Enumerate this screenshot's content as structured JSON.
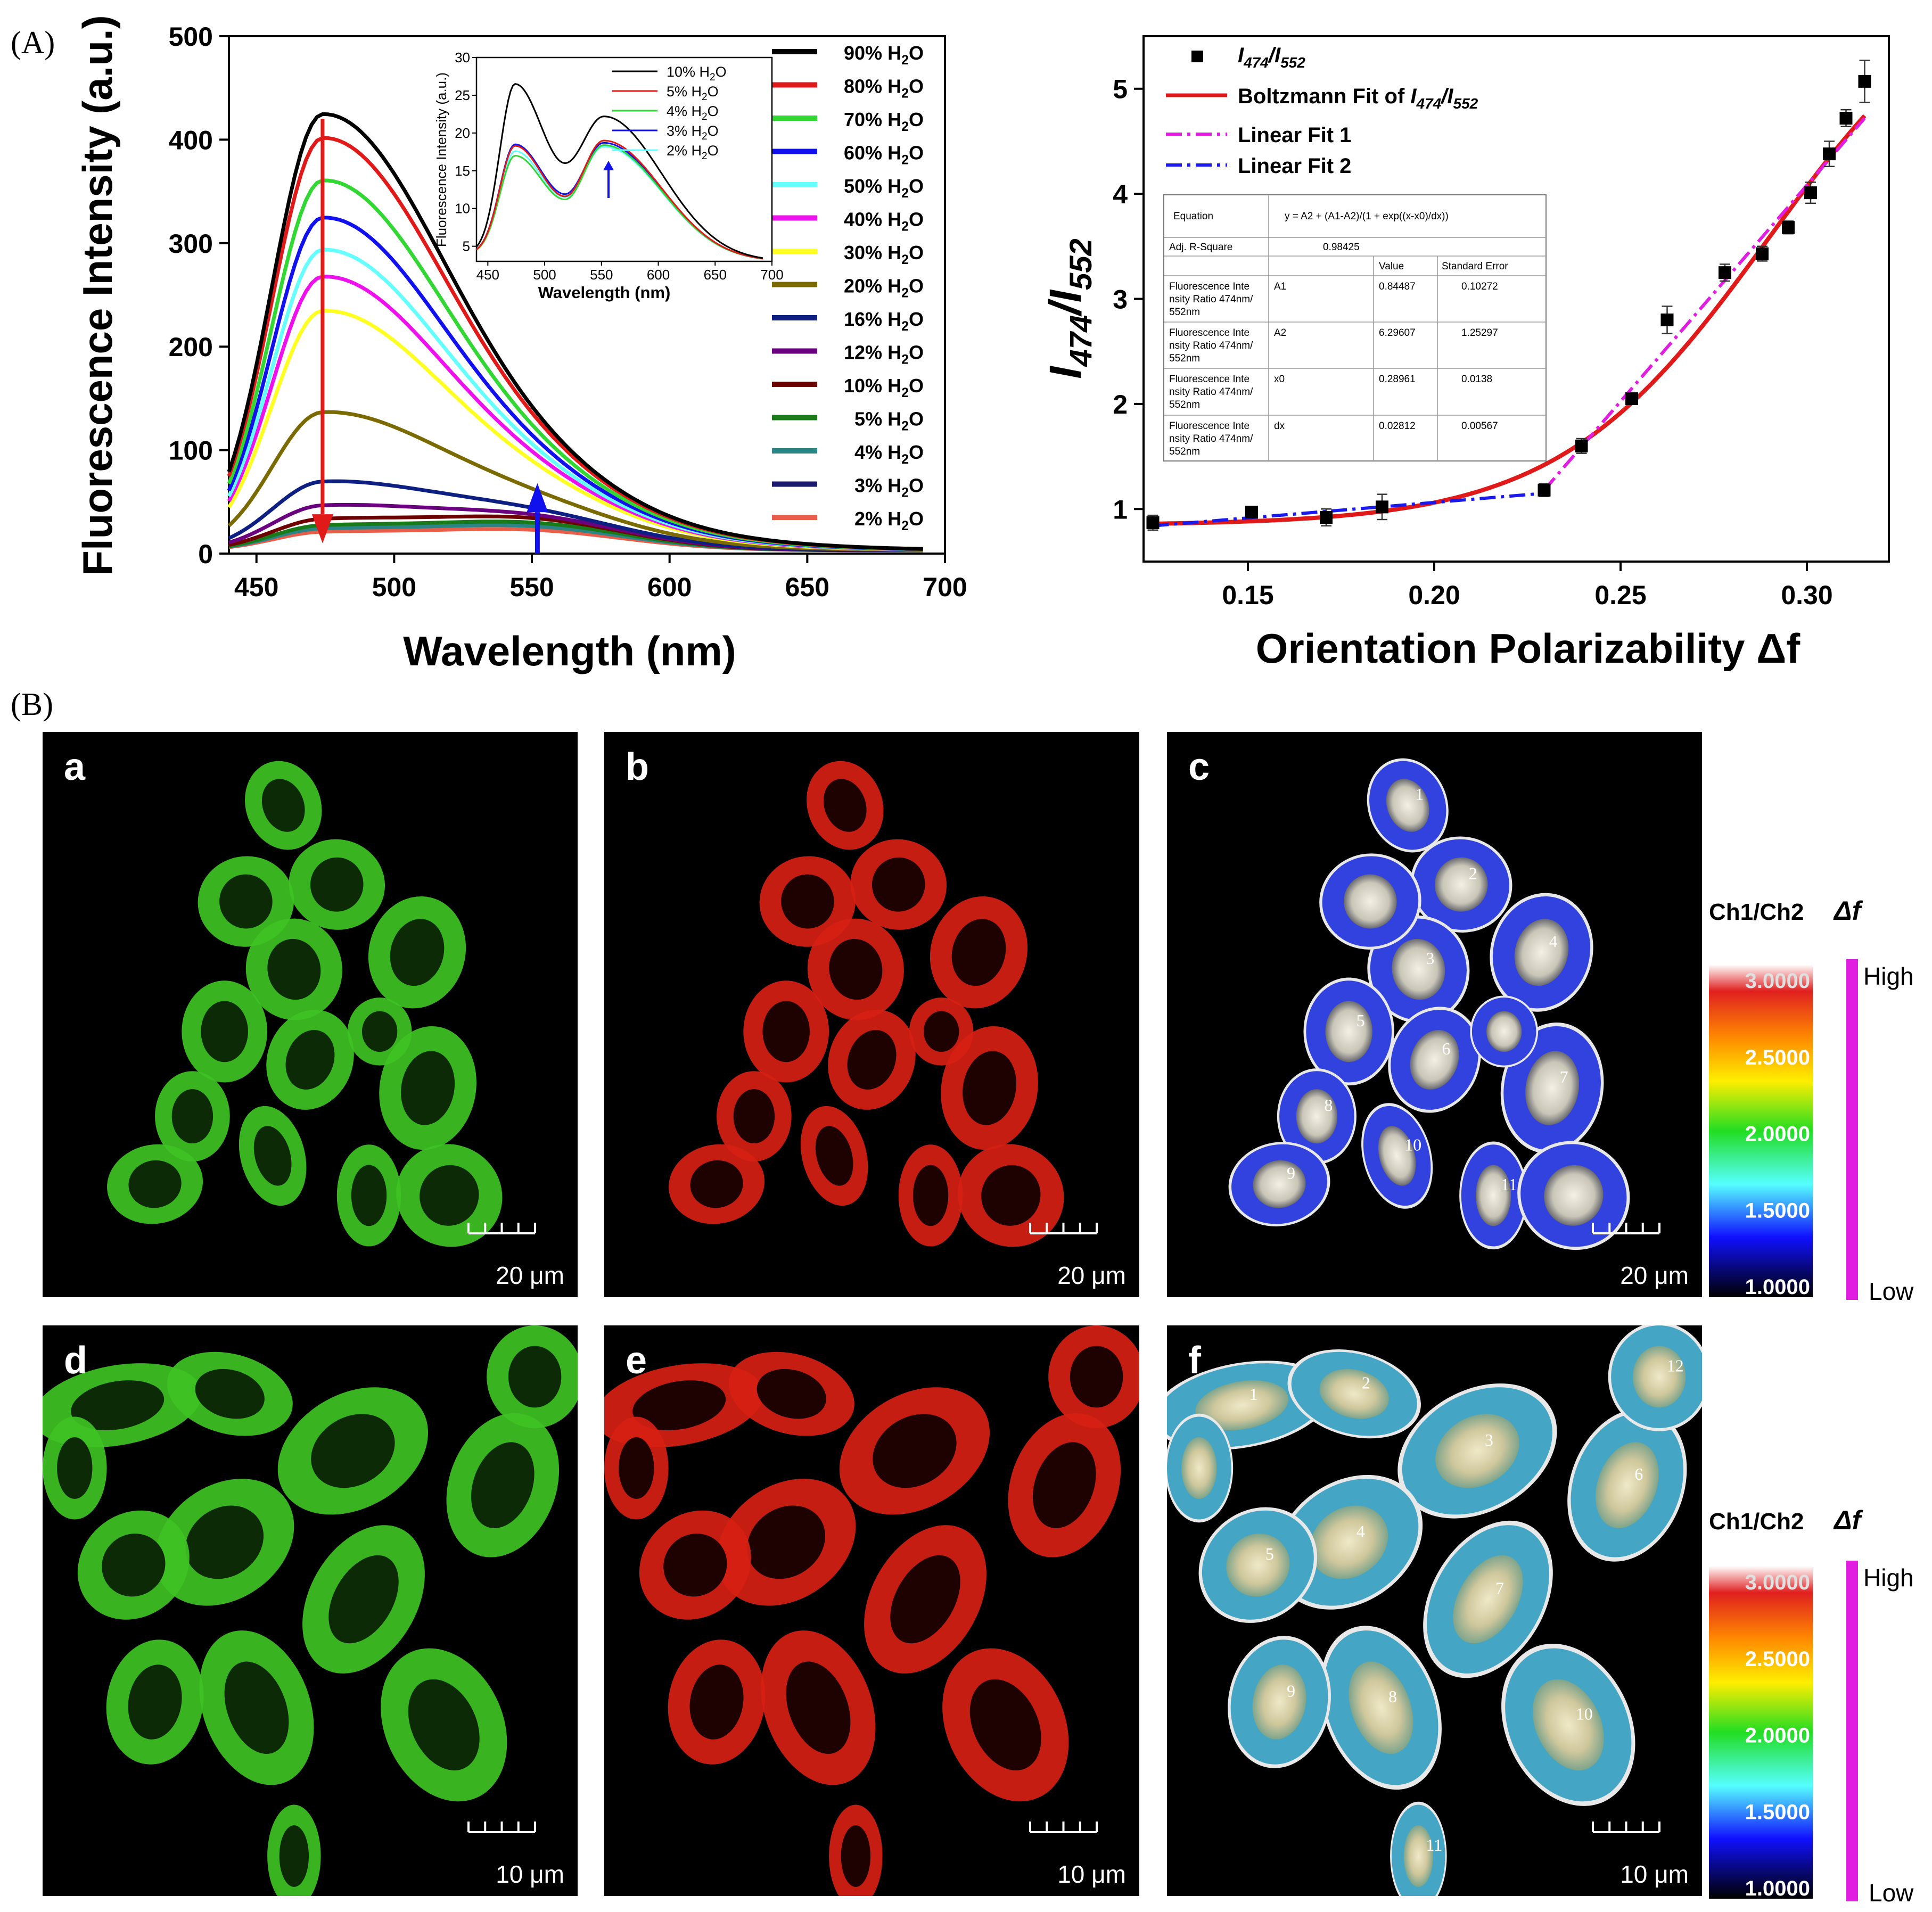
{
  "panel_labels": {
    "A": "(A)",
    "B": "(B)"
  },
  "colors": {
    "black": "#000000",
    "red": "#e01919",
    "green": "#33d733",
    "blue": "#1111ee",
    "cyan": "#66ffff",
    "magenta": "#ee11ee",
    "yellow": "#ffff22",
    "olive": "#7a6a00",
    "navy": "#0d1f80",
    "purple": "#6a0080",
    "maroon": "#6e0000",
    "darkgreen": "#197a19",
    "teal": "#2b8585",
    "midnight": "#1a1a6e",
    "salmon": "#e85e4a",
    "fit_red": "#e01919",
    "fit_magenta": "#e21de2",
    "fit_blue": "#1a1aee"
  },
  "chart_data": [
    {
      "id": "spectra",
      "type": "line",
      "title": "",
      "xlabel": "Wavelength (nm)",
      "ylabel": "Fluorescence Intensity (a.u.)",
      "xlim": [
        440,
        700
      ],
      "ylim": [
        0,
        500
      ],
      "xticks": [
        450,
        500,
        550,
        600,
        650,
        700
      ],
      "yticks": [
        0,
        100,
        200,
        300,
        400,
        500
      ],
      "series": [
        {
          "name": "90% H2O",
          "pct": "90%",
          "peak": 420,
          "color": "#000000"
        },
        {
          "name": "80% H2O",
          "pct": "80%",
          "peak": 397,
          "color": "#e01919"
        },
        {
          "name": "70% H2O",
          "pct": "70%",
          "peak": 356,
          "color": "#33d733"
        },
        {
          "name": "60% H2O",
          "pct": "60%",
          "peak": 320,
          "color": "#1111ee"
        },
        {
          "name": "50% H2O",
          "pct": "50%",
          "peak": 289,
          "color": "#66ffff"
        },
        {
          "name": "40% H2O",
          "pct": "40%",
          "peak": 263,
          "color": "#ee11ee"
        },
        {
          "name": "30% H2O",
          "pct": "30%",
          "peak": 230,
          "color": "#ffff22"
        },
        {
          "name": "20% H2O",
          "pct": "20%",
          "peak": 132,
          "color": "#7a6a00"
        },
        {
          "name": "16% H2O",
          "pct": "16%",
          "peak": 65,
          "color": "#0d1f80"
        },
        {
          "name": "12% H2O",
          "pct": "12%",
          "peak": 42,
          "color": "#6a0080"
        },
        {
          "name": "10% H2O",
          "pct": "10%",
          "peak": 29,
          "color": "#6e0000"
        },
        {
          "name": "5% H2O",
          "pct": "5%",
          "peak": 23,
          "color": "#197a19"
        },
        {
          "name": "4% H2O",
          "pct": "4%",
          "peak": 20,
          "color": "#2b8585"
        },
        {
          "name": "3% H2O",
          "pct": "3%",
          "peak": 21,
          "color": "#1a1a6e"
        },
        {
          "name": "2% H2O",
          "pct": "2%",
          "peak": 17,
          "color": "#e85e4a"
        }
      ],
      "annotations": [
        "red arrow down at 474 nm",
        "blue arrow up at 552 nm"
      ]
    },
    {
      "id": "inset",
      "type": "line",
      "xlabel": "Wavelength (nm)",
      "ylabel": "Fluorescence Intensity (a.u.)",
      "xlim": [
        440,
        700
      ],
      "ylim": [
        3,
        30
      ],
      "xticks": [
        450,
        500,
        550,
        600,
        650,
        700
      ],
      "yticks": [
        5,
        10,
        15,
        20,
        25,
        30
      ],
      "series": [
        {
          "name": "10% H2O",
          "pct": "10%",
          "peak1": 26.5,
          "valley": 16,
          "peak2": 22.2,
          "color": "#000000"
        },
        {
          "name": "5% H2O",
          "pct": "5%",
          "peak1": 18.3,
          "valley": 11.6,
          "peak2": 19.0,
          "color": "#e01919"
        },
        {
          "name": "4% H2O",
          "pct": "4%",
          "peak1": 17.0,
          "valley": 11.2,
          "peak2": 18.4,
          "color": "#33d733"
        },
        {
          "name": "3% H2O",
          "pct": "3%",
          "peak1": 18.5,
          "valley": 11.9,
          "peak2": 18.7,
          "color": "#1111ee"
        },
        {
          "name": "2% H2O",
          "pct": "2%",
          "peak1": 17.6,
          "valley": 11.5,
          "peak2": 18.2,
          "color": "#66ffff"
        }
      ]
    },
    {
      "id": "ratio",
      "type": "scatter",
      "xlabel": "Orientation Polarizability Δf",
      "ylabel": "I474/I552",
      "xlim": [
        0.122,
        0.322
      ],
      "ylim": [
        0.5,
        5.5
      ],
      "xticks": [
        0.15,
        0.2,
        0.25,
        0.3
      ],
      "xtick_labels": [
        "0.15",
        "0.20",
        "0.25",
        "0.30"
      ],
      "yticks": [
        1,
        2,
        3,
        4,
        5
      ],
      "points": [
        {
          "x": 0.1245,
          "y": 0.87,
          "err": 0.07
        },
        {
          "x": 0.151,
          "y": 0.97,
          "err": 0.05
        },
        {
          "x": 0.171,
          "y": 0.92,
          "err": 0.08
        },
        {
          "x": 0.186,
          "y": 1.02,
          "err": 0.12
        },
        {
          "x": 0.2295,
          "y": 1.18,
          "err": 0.06
        },
        {
          "x": 0.2395,
          "y": 1.6,
          "err": 0.07
        },
        {
          "x": 0.253,
          "y": 2.05,
          "err": 0.05
        },
        {
          "x": 0.2625,
          "y": 2.8,
          "err": 0.13
        },
        {
          "x": 0.278,
          "y": 3.25,
          "err": 0.08
        },
        {
          "x": 0.288,
          "y": 3.43,
          "err": 0.07
        },
        {
          "x": 0.295,
          "y": 3.68,
          "err": 0.06
        },
        {
          "x": 0.301,
          "y": 4.01,
          "err": 0.1
        },
        {
          "x": 0.306,
          "y": 4.38,
          "err": 0.12
        },
        {
          "x": 0.3105,
          "y": 4.72,
          "err": 0.08
        },
        {
          "x": 0.3155,
          "y": 5.07,
          "err": 0.2
        }
      ],
      "fits": {
        "boltzmann": {
          "A1": 0.84487,
          "A2": 6.29607,
          "x0": 0.28961,
          "dx": 0.02812
        },
        "linear1": {
          "x0": 0.2295,
          "y0": 1.18,
          "x1": 0.3155,
          "y1": 4.72
        },
        "linear2": {
          "x0": 0.1245,
          "y0": 0.84,
          "x1": 0.2295,
          "y1": 1.15
        }
      },
      "legend": {
        "points": "/",
        "points_I": "I",
        "points_sub1": "474",
        "points_sub2": "552",
        "boltz": "Boltzmann Fit of ",
        "lin1": "Linear Fit 1",
        "lin2": "Linear Fit 2"
      }
    }
  ],
  "fit_table": {
    "equation_label": "Equation",
    "equation": "y = A2 + (A1-A2)/(1 + exp((x-x0)/dx))",
    "r2_label": "Adj. R-Square",
    "r2_value": "0.98425",
    "col_value": "Value",
    "col_error": "Standard Error",
    "row_label": "Fluorescence Inte nsity Ratio 474nm/ 552nm",
    "rows": [
      {
        "param": "A1",
        "value": "0.84487",
        "error": "0.10272"
      },
      {
        "param": "A2",
        "value": "6.29607",
        "error": "1.25297"
      },
      {
        "param": "x0",
        "value": "0.28961",
        "error": "0.0138"
      },
      {
        "param": "dx",
        "value": "0.02812",
        "error": "0.00567"
      }
    ]
  },
  "h2o": "H",
  "h2o_sub": "2",
  "h2o_o": "O",
  "images": [
    {
      "label": "a",
      "scale": "20 μm",
      "channel": "green"
    },
    {
      "label": "b",
      "scale": "20 μm",
      "channel": "red"
    },
    {
      "label": "c",
      "scale": "20 μm",
      "channel": "ratio",
      "cell_numbers": [
        "1",
        "2",
        "3",
        "4",
        "5",
        "6",
        "7",
        "8",
        "9",
        "10",
        "11"
      ]
    },
    {
      "label": "d",
      "scale": "10 μm",
      "channel": "green"
    },
    {
      "label": "e",
      "scale": "10 μm",
      "channel": "red"
    },
    {
      "label": "f",
      "scale": "10 μm",
      "channel": "ratio",
      "cell_numbers": [
        "1",
        "2",
        "3",
        "4",
        "5",
        "6",
        "7",
        "8",
        "9",
        "10",
        "11",
        "12"
      ]
    }
  ],
  "colorbar": {
    "title": "Ch1/Ch2",
    "ticks": [
      "3.0000",
      "2.5000",
      "2.0000",
      "1.5000",
      "1.0000"
    ],
    "delta_f": "Δf",
    "high": "High",
    "low": "Low"
  }
}
